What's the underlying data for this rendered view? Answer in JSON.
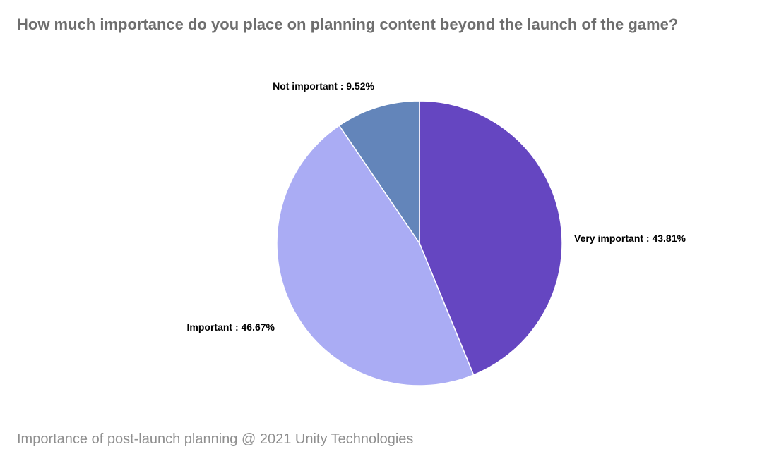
{
  "title": "How much importance do you place on planning content beyond the launch of the game?",
  "caption": "Importance of post-launch planning @ 2021 Unity Technologies",
  "chart_data": {
    "type": "pie",
    "title": "How much importance do you place on planning content beyond the launch of the game?",
    "slices": [
      {
        "label": "Very important",
        "value": 43.81,
        "display": "Very important : 43.81%",
        "color": "#6546c1"
      },
      {
        "label": "Important",
        "value": 46.67,
        "display": "Important : 46.67%",
        "color": "#aaacf4"
      },
      {
        "label": "Not important",
        "value": 9.52,
        "display": "Not important : 9.52%",
        "color": "#6385ba"
      }
    ],
    "start": "12 o'clock",
    "direction": "clockwise",
    "slice_border": "#ffffff"
  }
}
